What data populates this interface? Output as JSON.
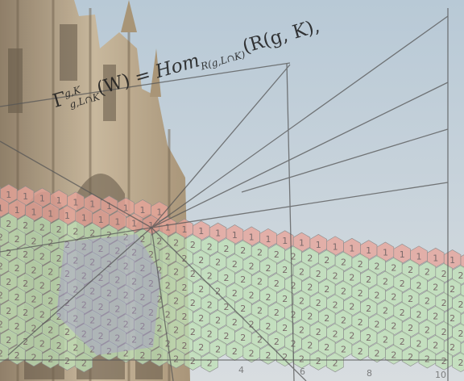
{
  "formula": {
    "lhs": "Γ",
    "lhs_super": "g,K",
    "lhs_sub": "g,L∩K",
    "arg": "(W) = ",
    "hom": "Hom",
    "hom_sub": "R(g,L∩K)",
    "rhs": "(R(g, K),"
  },
  "hex_labels": {
    "upper": "1",
    "lower": "2"
  },
  "axis": {
    "x_ticks": [
      "4",
      "6",
      "8",
      "10"
    ]
  },
  "colors": {
    "sky": "#c4d3de",
    "stone": "#b9a98e",
    "red_hex": "#e8a49a",
    "green_hex": "#bfe0b6",
    "purple": "#a79ccd",
    "line": "#5a5a5a"
  }
}
